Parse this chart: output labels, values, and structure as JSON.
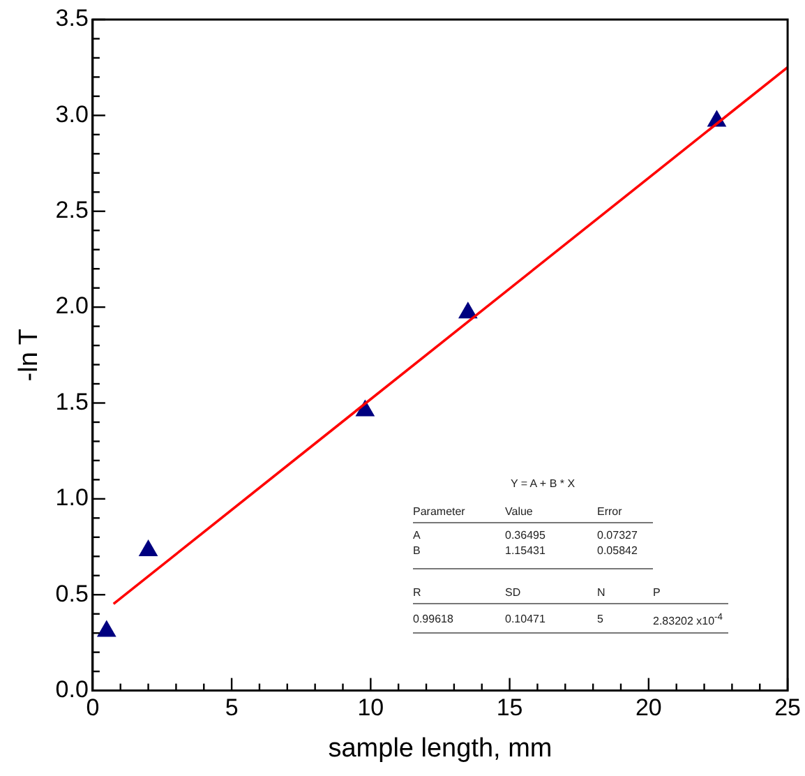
{
  "chart_data": {
    "type": "scatter",
    "xlabel": "sample length, mm",
    "ylabel": "-ln T",
    "series": [
      {
        "color": "#000080",
        "marker": "triangle",
        "x": [
          0.5,
          2.0,
          9.8,
          13.5,
          22.45
        ],
        "values": [
          0.31,
          0.73,
          1.46,
          1.97,
          2.97
        ]
      },
      {
        "type": "line",
        "color": "#ff0000",
        "marker": "none",
        "line_style": "solid",
        "x": [
          0.75,
          25
        ],
        "values": [
          0.452,
          3.251
        ]
      }
    ],
    "xlim": [
      0,
      25
    ],
    "xticks": [
      0,
      {
        "value": 1,
        "label": null
      },
      {
        "value": 2,
        "label": null
      },
      {
        "value": 3,
        "label": null
      },
      {
        "value": 4,
        "label": null
      },
      5,
      {
        "value": 6,
        "label": null
      },
      {
        "value": 7,
        "label": null
      },
      {
        "value": 8,
        "label": null
      },
      {
        "value": 9,
        "label": null
      },
      10,
      {
        "value": 11,
        "label": null
      },
      {
        "value": 12,
        "label": null
      },
      {
        "value": 13,
        "label": null
      },
      {
        "value": 14,
        "label": null
      },
      15,
      {
        "value": 16,
        "label": null
      },
      {
        "value": 17,
        "label": null
      },
      {
        "value": 18,
        "label": null
      },
      {
        "value": 19,
        "label": null
      },
      20,
      {
        "value": 21,
        "label": null
      },
      {
        "value": 22,
        "label": null
      },
      {
        "value": 23,
        "label": null
      },
      {
        "value": 24,
        "label": null
      },
      25
    ],
    "ylim": [
      0,
      3.5
    ],
    "yticks": [
      {
        "value": 0,
        "label": "0.0"
      },
      {
        "value": 0.1,
        "label": null
      },
      {
        "value": 0.2,
        "label": null
      },
      {
        "value": 0.3,
        "label": null
      },
      {
        "value": 0.4,
        "label": null
      },
      {
        "value": 0.5,
        "label": "0.5"
      },
      {
        "value": 0.6,
        "label": null
      },
      {
        "value": 0.7,
        "label": null
      },
      {
        "value": 0.8,
        "label": null
      },
      {
        "value": 0.9,
        "label": null
      },
      {
        "value": 1,
        "label": "1.0"
      },
      {
        "value": 1.1,
        "label": null
      },
      {
        "value": 1.2,
        "label": null
      },
      {
        "value": 1.3,
        "label": null
      },
      {
        "value": 1.4,
        "label": null
      },
      {
        "value": 1.5,
        "label": "1.5"
      },
      {
        "value": 1.6,
        "label": null
      },
      {
        "value": 1.7,
        "label": null
      },
      {
        "value": 1.8,
        "label": null
      },
      {
        "value": 1.9,
        "label": null
      },
      {
        "value": 2,
        "label": "2.0"
      },
      {
        "value": 2.1,
        "label": null
      },
      {
        "value": 2.2,
        "label": null
      },
      {
        "value": 2.3,
        "label": null
      },
      {
        "value": 2.4,
        "label": null
      },
      {
        "value": 2.5,
        "label": "2.5"
      },
      {
        "value": 2.6,
        "label": null
      },
      {
        "value": 2.7,
        "label": null
      },
      {
        "value": 2.8,
        "label": null
      },
      {
        "value": 2.9,
        "label": null
      },
      {
        "value": 3,
        "label": "3.0"
      },
      {
        "value": 3.1,
        "label": null
      },
      {
        "value": 3.2,
        "label": null
      },
      {
        "value": 3.3,
        "label": null
      },
      {
        "value": 3.4,
        "label": null
      },
      {
        "value": 3.5,
        "label": "3.5"
      }
    ],
    "grid": false,
    "legend": false,
    "annotations": [
      "Y = A + B * X",
      "Parameter",
      "Value",
      "Error",
      "A",
      "0.36495",
      "0.07327",
      "B",
      "1.15431",
      "0.05842",
      "R",
      "SD",
      "N",
      "P",
      "0.99618",
      "0.10471",
      "5",
      "2.83202 x10$^{-4}$"
    ]
  }
}
